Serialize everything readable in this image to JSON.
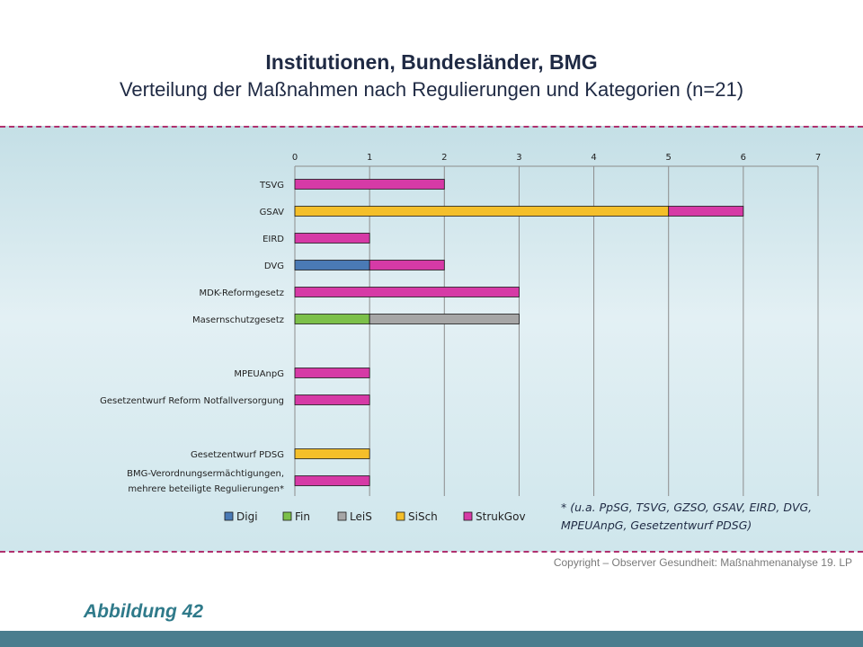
{
  "page": {
    "title": "Institutionen, Bundesländer, BMG",
    "subtitle": "Verteilung der Maßnahmen nach Regulierungen und Kategorien (n=21)",
    "footnote_line1": "* (u.a. PpSG, TSVG, GZSO, GSAV, EIRD, DVG,",
    "footnote_line2": "MPEUAnpG, Gesetzentwurf PDSG)",
    "copyright": "Copyright – Observer Gesundheit: Maßnahmenanalyse 19. LP",
    "figure_label": "Abbildung 42"
  },
  "colors": {
    "Digi": "#4a7ab5",
    "Fin": "#7cc04a",
    "LeiS": "#a6a6a6",
    "SiSch": "#f4bf2a",
    "StrukGov": "#d63aa6",
    "accent_dash": "#b0306e"
  },
  "chart_data": {
    "type": "bar",
    "orientation": "horizontal",
    "stacked": true,
    "title": "Institutionen, Bundesländer, BMG",
    "subtitle": "Verteilung der Maßnahmen nach Regulierungen und Kategorien (n=21)",
    "xlim": [
      0,
      7
    ],
    "xticks": [
      "0",
      "1",
      "2",
      "3",
      "4",
      "5",
      "6",
      "7"
    ],
    "x_axis_position": "top",
    "grid": "vertical",
    "legend_position": "bottom",
    "categories": [
      "TSVG",
      "GSAV",
      "EIRD",
      "DVG",
      "MDK-Reformgesetz",
      "Masernschutzgesetz",
      "MPEUAnpG",
      "Gesetzentwurf Reform Notfallversorgung",
      "Gesetzentwurf PDSG",
      "BMG-Verordnungsermächtigungen,|mehrere beteiligte Regulierungen*"
    ],
    "series": [
      {
        "name": "Digi",
        "values": [
          0,
          0,
          0,
          1,
          0,
          0,
          0,
          0,
          0,
          0
        ]
      },
      {
        "name": "Fin",
        "values": [
          0,
          0,
          0,
          0,
          0,
          1,
          0,
          0,
          0,
          0
        ]
      },
      {
        "name": "LeiS",
        "values": [
          0,
          0,
          0,
          0,
          0,
          2,
          0,
          0,
          0,
          0
        ]
      },
      {
        "name": "SiSch",
        "values": [
          0,
          5,
          0,
          0,
          0,
          0,
          0,
          0,
          1,
          0
        ]
      },
      {
        "name": "StrukGov",
        "values": [
          2,
          1,
          1,
          1,
          3,
          0,
          1,
          1,
          0,
          1
        ]
      }
    ]
  }
}
